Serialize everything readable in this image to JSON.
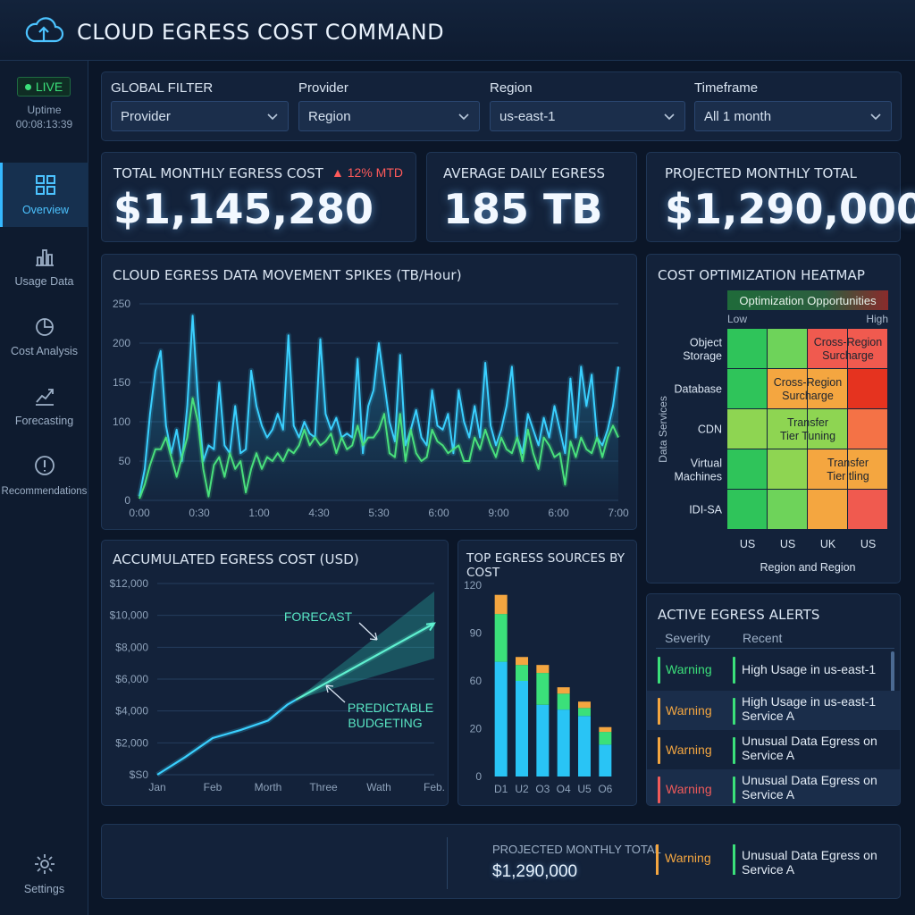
{
  "app": {
    "title": "CLOUD EGRESS COST COMMAND",
    "logo_icon": "cloud-upload-icon"
  },
  "status": {
    "live_label": "LIVE",
    "uptime_label": "Uptime",
    "uptime_value": "00:08:13:39"
  },
  "sidebar": {
    "items": [
      {
        "label": "Overview",
        "icon": "grid-icon",
        "active": true
      },
      {
        "label": "Usage Data",
        "icon": "bar-chart-icon",
        "active": false
      },
      {
        "label": "Cost Analysis",
        "icon": "pie-chart-icon",
        "active": false
      },
      {
        "label": "Forecasting",
        "icon": "trend-icon",
        "active": false
      },
      {
        "label": "Recommendations",
        "icon": "alert-circle-icon",
        "active": false
      }
    ],
    "settings_label": "Settings"
  },
  "filters": {
    "global_label": "GLOBAL FILTER",
    "global_value": "Provider",
    "provider_label": "Provider",
    "provider_value": "Region",
    "region_label": "Region",
    "region_value": "us-east-1",
    "timeframe_label": "Timeframe",
    "timeframe_value": "All 1 month"
  },
  "kpis": {
    "total": {
      "label": "TOTAL MONTHLY EGRESS COST",
      "value": "$1,145,280",
      "delta": "12% MTD"
    },
    "daily": {
      "label": "AVERAGE DAILY EGRESS",
      "value": "185 TB"
    },
    "projected": {
      "label": "PROJECTED MONTHLY TOTAL",
      "value": "$1,290,000"
    }
  },
  "colors": {
    "accent": "#35b8ff",
    "green": "#3be07a",
    "warning": "#f4a640",
    "danger": "#f05a5a"
  },
  "spikes_title": "CLOUD EGRESS DATA MOVEMENT SPIKES (TB/Hour)",
  "cumulative_title": "ACCUMULATED EGRESS COST (USD)",
  "cumulative_annotations": {
    "forecast": "FORECAST",
    "predictable_1": "PREDICTABLE",
    "predictable_2": "BUDGETING"
  },
  "sources_title": "TOP EGRESS SOURCES BY COST",
  "heatmap": {
    "title": "COST OPTIMIZATION HEATMAP",
    "scale_label": "Optimization Opportunities",
    "low_label": "Low",
    "high_label": "High",
    "rows": [
      "Object Storage",
      "Database",
      "CDN",
      "Virtual Machines",
      "IDI-SA"
    ],
    "cols": [
      "US",
      "US",
      "UK",
      "US"
    ],
    "y_axis_label": "Data Services",
    "x_axis_label": "Region and Region",
    "cell_colors": [
      [
        "#2fc45a",
        "#6ed35a",
        "#f05a4f",
        "#f05a4f"
      ],
      [
        "#2fc45a",
        "#f4a640",
        "#f4a640",
        "#e5331f"
      ],
      [
        "#8ed552",
        "#8ed552",
        "#8ed552",
        "#f47246"
      ],
      [
        "#2fc45a",
        "#8ed552",
        "#f4a640",
        "#f4a640"
      ],
      [
        "#2fc45a",
        "#6ed35a",
        "#f4a640",
        "#f05a4f"
      ]
    ],
    "labels": [
      {
        "text_1": "Cross-Region",
        "text_2": "Surcharge"
      },
      {
        "text_1": "Cross-Region",
        "text_2": "Surcharge"
      },
      {
        "text_1": "Transfer",
        "text_2": "Tier Tuning"
      },
      {
        "text_1": "Transfer",
        "text_2": "Tier tling"
      }
    ]
  },
  "alerts": {
    "title": "ACTIVE EGRESS ALERTS",
    "col_severity": "Severity",
    "col_recent": "Recent",
    "rows": [
      {
        "severity": "Warning",
        "color": "#3be07a",
        "message": "High Usage in us-east-1"
      },
      {
        "severity": "Warning",
        "color": "#f4a640",
        "message": "High Usage in us-east-1 Service A"
      },
      {
        "severity": "Warning",
        "color": "#f4a640",
        "message": "Unusual Data Egress on Service A"
      },
      {
        "severity": "Warning",
        "color": "#f05a5a",
        "message": "Unusual Data Egress on Service A"
      }
    ]
  },
  "footer": {
    "projected_label": "PROJECTED MONTHLY TOTAL",
    "projected_value": "$1,290,000",
    "alert_severity": "Warning",
    "alert_message": "Unusual Data Egress on Service A"
  },
  "chart_data": [
    {
      "type": "line",
      "title": "CLOUD EGRESS DATA MOVEMENT SPIKES (TB/Hour)",
      "x_ticks": [
        "0:00",
        "0:30",
        "1:00",
        "4:30",
        "5:30",
        "6:00",
        "9:00",
        "6:00",
        "7:00"
      ],
      "ylim": [
        0,
        250
      ],
      "y_ticks": [
        0,
        50,
        100,
        150,
        200,
        250
      ],
      "grid": true,
      "series": [
        {
          "color": "#3ad0ff",
          "values": [
            5,
            40,
            110,
            165,
            190,
            95,
            60,
            90,
            50,
            120,
            235,
            130,
            50,
            70,
            65,
            150,
            70,
            60,
            120,
            60,
            65,
            165,
            120,
            95,
            80,
            90,
            110,
            90,
            210,
            95,
            80,
            100,
            85,
            80,
            205,
            110,
            90,
            105,
            80,
            85,
            80,
            180,
            60,
            120,
            140,
            200,
            150,
            100,
            75,
            185,
            70,
            90,
            115,
            80,
            70,
            140,
            95,
            90,
            110,
            60,
            140,
            100,
            80,
            120,
            80,
            175,
            95,
            70,
            90,
            120,
            170,
            80,
            60,
            110,
            90,
            70,
            105,
            80,
            120,
            90,
            60,
            155,
            80,
            170,
            120,
            160,
            80,
            70,
            90,
            120,
            170
          ]
        },
        {
          "color": "#49e07c",
          "values": [
            2,
            20,
            45,
            65,
            65,
            80,
            55,
            30,
            55,
            80,
            130,
            100,
            40,
            5,
            45,
            55,
            30,
            60,
            40,
            50,
            10,
            40,
            60,
            40,
            55,
            50,
            60,
            50,
            65,
            60,
            70,
            90,
            70,
            80,
            70,
            75,
            85,
            60,
            80,
            65,
            70,
            95,
            70,
            80,
            80,
            90,
            110,
            60,
            55,
            110,
            50,
            90,
            60,
            50,
            55,
            90,
            75,
            70,
            60,
            65,
            70,
            50,
            50,
            80,
            65,
            90,
            70,
            55,
            80,
            65,
            60,
            80,
            50,
            90,
            60,
            40,
            80,
            70,
            55,
            60,
            20,
            75,
            55,
            80,
            65,
            60,
            80,
            55,
            80,
            95,
            80
          ]
        }
      ]
    },
    {
      "type": "line",
      "title": "ACCUMULATED EGRESS COST (USD)",
      "categories": [
        "Jan",
        "Feb",
        "Morth",
        "Three",
        "Wath",
        "Feb."
      ],
      "y_ticks": [
        "$S0",
        "$2,000",
        "$4,000",
        "$6,000",
        "$8,000",
        "$10,000",
        "$12,000"
      ],
      "ylim": [
        0,
        12000
      ],
      "series": [
        {
          "name": "actual",
          "x": [
            0,
            0.5,
            1,
            1.5,
            2,
            2.35,
            2.5
          ],
          "values": [
            0,
            1100,
            2300,
            2800,
            3400,
            4400,
            4700
          ]
        },
        {
          "name": "forecast",
          "x": [
            2.5,
            5
          ],
          "values": [
            4700,
            9500
          ]
        }
      ],
      "forecast_band": {
        "x": [
          2.5,
          5
        ],
        "upper": [
          4700,
          11500
        ],
        "lower": [
          4700,
          7300
        ]
      }
    },
    {
      "type": "bar",
      "stacked": true,
      "title": "TOP EGRESS SOURCES BY COST",
      "categories": [
        "D1",
        "U2",
        "O3",
        "O4",
        "U5",
        "O6"
      ],
      "ylim": [
        0,
        120
      ],
      "y_ticks": [
        0,
        20,
        60,
        90,
        120
      ],
      "series": [
        {
          "color": "#29c4f5",
          "values": [
            72,
            60,
            45,
            42,
            38,
            20
          ]
        },
        {
          "color": "#3be07a",
          "values": [
            30,
            10,
            20,
            10,
            5,
            8
          ]
        },
        {
          "color": "#f4a640",
          "values": [
            12,
            5,
            5,
            4,
            4,
            3
          ]
        }
      ]
    }
  ]
}
